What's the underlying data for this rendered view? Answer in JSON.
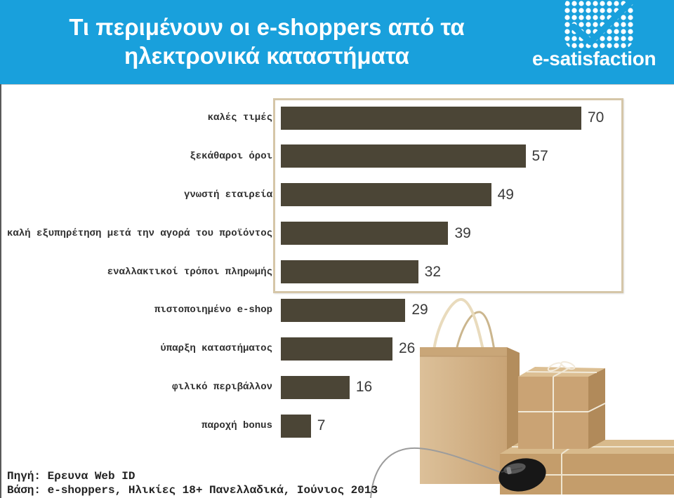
{
  "header": {
    "title_line1": "Τι περιμένουν οι e-shoppers από τα",
    "title_line2": "ηλεκτρονικά καταστήματα",
    "logo_text": "e-satisfaction",
    "logo_icon": "checkmark-dots-icon"
  },
  "colors": {
    "header_background": "#19a0dc",
    "title_text": "#ffffff",
    "bar": "#4b4536",
    "value_text": "#3a3a3a",
    "highlight_border": "#d5c6a8"
  },
  "chart_data": {
    "type": "bar",
    "orientation": "horizontal",
    "categories": [
      "καλές τιμές",
      "ξεκάθαροι όροι",
      "γνωστή εταιρεία",
      "καλή εξυπηρέτηση μετά την αγορά του προϊόντος",
      "εναλλακτικοί τρόποι πληρωμής",
      "πιστοποιημένο e-shop",
      "ύπαρξη καταστήματος",
      "φιλικό περιβάλλον",
      "παροχή bonus"
    ],
    "values": [
      70,
      57,
      49,
      39,
      32,
      29,
      26,
      16,
      7
    ],
    "xlim": [
      0,
      70
    ],
    "grid": false,
    "axes_visible": false,
    "legend": "none",
    "data_labels": true,
    "highlight_first_n": 5
  },
  "footer": {
    "source": "Πηγή: Ερευνα Web ID",
    "base": "Βάση: e-shoppers, Ηλικίες 18+ Πανελλαδικά, Ιούνιος 2013"
  },
  "illustration": {
    "icons": [
      "shopping-bag-icon",
      "gift-box-icon",
      "parcel-icon",
      "computer-mouse-icon"
    ]
  }
}
